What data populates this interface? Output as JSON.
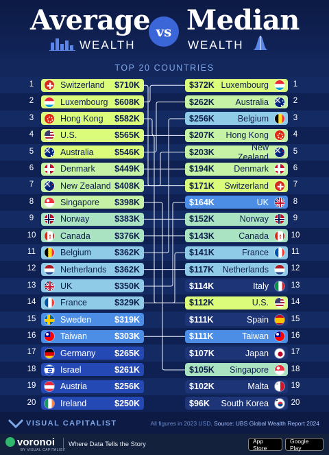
{
  "header": {
    "left_title": "Average",
    "left_sub": "WEALTH",
    "vs": "vs",
    "right_title": "Median",
    "right_sub": "WEALTH",
    "subtitle": "TOP 20 COUNTRIES"
  },
  "chart_data": {
    "type": "table",
    "title": "Average vs Median Wealth",
    "subtitle": "TOP 20 COUNTRIES",
    "average": [
      {
        "rank": "1",
        "country": "Switzerland",
        "value": "$710K",
        "flag": "ch"
      },
      {
        "rank": "2",
        "country": "Luxembourg",
        "value": "$608K",
        "flag": "lu"
      },
      {
        "rank": "3",
        "country": "Hong Kong",
        "value": "$582K",
        "flag": "hk"
      },
      {
        "rank": "4",
        "country": "U.S.",
        "value": "$565K",
        "flag": "us"
      },
      {
        "rank": "5",
        "country": "Australia",
        "value": "$546K",
        "flag": "au"
      },
      {
        "rank": "6",
        "country": "Denmark",
        "value": "$449K",
        "flag": "dk"
      },
      {
        "rank": "7",
        "country": "New Zealand",
        "value": "$408K",
        "flag": "nz"
      },
      {
        "rank": "8",
        "country": "Singapore",
        "value": "$398K",
        "flag": "sg"
      },
      {
        "rank": "9",
        "country": "Norway",
        "value": "$383K",
        "flag": "no"
      },
      {
        "rank": "10",
        "country": "Canada",
        "value": "$376K",
        "flag": "ca"
      },
      {
        "rank": "11",
        "country": "Belgium",
        "value": "$362K",
        "flag": "be"
      },
      {
        "rank": "12",
        "country": "Netherlands",
        "value": "$362K",
        "flag": "nl"
      },
      {
        "rank": "13",
        "country": "UK",
        "value": "$350K",
        "flag": "uk"
      },
      {
        "rank": "14",
        "country": "France",
        "value": "$329K",
        "flag": "fr"
      },
      {
        "rank": "15",
        "country": "Sweden",
        "value": "$319K",
        "flag": "se"
      },
      {
        "rank": "16",
        "country": "Taiwan",
        "value": "$303K",
        "flag": "tw"
      },
      {
        "rank": "17",
        "country": "Germany",
        "value": "$265K",
        "flag": "de"
      },
      {
        "rank": "18",
        "country": "Israel",
        "value": "$261K",
        "flag": "il"
      },
      {
        "rank": "19",
        "country": "Austria",
        "value": "$256K",
        "flag": "at"
      },
      {
        "rank": "20",
        "country": "Ireland",
        "value": "$250K",
        "flag": "ie"
      }
    ],
    "median": [
      {
        "rank": "1",
        "country": "Luxembourg",
        "value": "$372K",
        "flag": "lu"
      },
      {
        "rank": "2",
        "country": "Australia",
        "value": "$262K",
        "flag": "au"
      },
      {
        "rank": "3",
        "country": "Belgium",
        "value": "$256K",
        "flag": "be"
      },
      {
        "rank": "4",
        "country": "Hong Kong",
        "value": "$207K",
        "flag": "hk"
      },
      {
        "rank": "5",
        "country": "New Zealand",
        "value": "$203K",
        "flag": "nz"
      },
      {
        "rank": "6",
        "country": "Denmark",
        "value": "$194K",
        "flag": "dk"
      },
      {
        "rank": "7",
        "country": "Switzerland",
        "value": "$171K",
        "flag": "ch"
      },
      {
        "rank": "8",
        "country": "UK",
        "value": "$164K",
        "flag": "uk"
      },
      {
        "rank": "9",
        "country": "Norway",
        "value": "$152K",
        "flag": "no"
      },
      {
        "rank": "10",
        "country": "Canada",
        "value": "$143K",
        "flag": "ca"
      },
      {
        "rank": "11",
        "country": "France",
        "value": "$141K",
        "flag": "fr"
      },
      {
        "rank": "12",
        "country": "Netherlands",
        "value": "$117K",
        "flag": "nl"
      },
      {
        "rank": "13",
        "country": "Italy",
        "value": "$114K",
        "flag": "it"
      },
      {
        "rank": "14",
        "country": "U.S.",
        "value": "$112K",
        "flag": "us"
      },
      {
        "rank": "15",
        "country": "Spain",
        "value": "$111K",
        "flag": "es"
      },
      {
        "rank": "16",
        "country": "Taiwan",
        "value": "$111K",
        "flag": "tw"
      },
      {
        "rank": "17",
        "country": "Japan",
        "value": "$107K",
        "flag": "jp"
      },
      {
        "rank": "18",
        "country": "Singapore",
        "value": "$105K",
        "flag": "sg"
      },
      {
        "rank": "19",
        "country": "Malta",
        "value": "$102K",
        "flag": "mt"
      },
      {
        "rank": "20",
        "country": "South Korea",
        "value": "$96K",
        "flag": "kr"
      }
    ],
    "colors": {
      "lime": "#dbfb7a",
      "light_green": "#c5f2a4",
      "mint": "#a9e3c2",
      "light_blue": "#8fcbe6",
      "blue": "#4c8ee6",
      "dark_blue": "#2449b5",
      "navy": "#1d3477"
    }
  },
  "footer": {
    "brand": "VISUAL CAPITALIST",
    "source_prefix": "All figures in 2023 USD.",
    "source_label": "Source: UBS Global Wealth Report 2024"
  },
  "bottom_bar": {
    "brand": "voronoi",
    "brand_sub": "BY VISUAL CAPITALIST",
    "tagline": "Where Data Tells the Story",
    "app_store": "App Store",
    "google_play": "Google Play"
  }
}
